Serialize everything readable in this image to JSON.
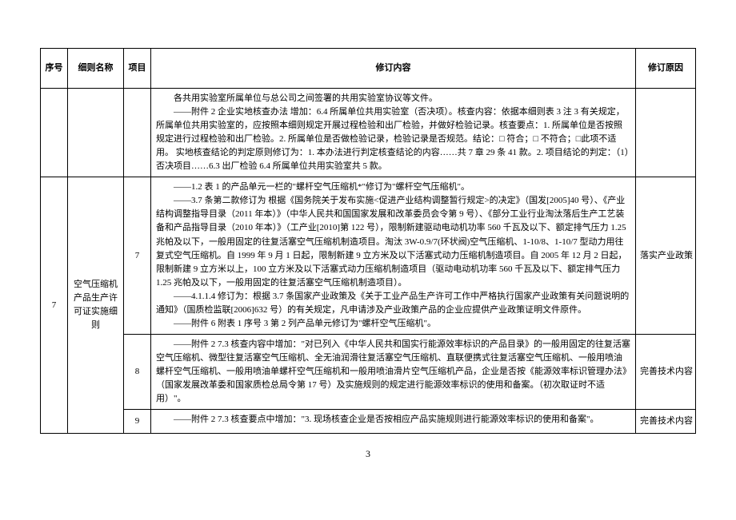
{
  "header": {
    "seq": "序号",
    "name": "细则名称",
    "item": "项目",
    "content": "修订内容",
    "reason": "修订原因"
  },
  "rows": [
    {
      "seq": "",
      "name": "",
      "item": "",
      "content": [
        "各共用实验室所属单位与总公司之间签署的共用实验室协议等文件。",
        "——附件 2 企业实地核查办法  增加：6.4 所属单位共用实验室（否决项）。核查内容：依据本细则表 3 注 3 有关规定，所属单位共用实验室的，应按照本细则规定开展过程检验和出厂检验，并做好检验记录。核查要点：1. 所属单位是否按照规定进行过程检验和出厂检验。2. 所属单位是否做检验记录，检验记录是否规范。结论：□ 符合；□ 不符合；□此项不适用。 实地核查结论的判定原则修订为：1. 本办法进行判定核查结论的内容……共 7 章 29 条 41 款。2. 项目结论的判定：（1）否决项目……6.3 出厂检验 6.4 所属单位共用实验室共 5 款。"
      ],
      "reason": ""
    },
    {
      "seq": "7",
      "name": "空气压缩机产品生产许可证实施细则",
      "item": "7",
      "content": [
        "——1.2 表 1 的产品单元一栏的\"螺杆空气压缩机*\"修订为\"螺杆空气压缩机\"。",
        "——3.7 条第二款修订为 根据《国务院关于发布实施<促进产业结构调整暂行规定>的决定》（国发[2005]40 号）、《产业结构调整指导目录（2011 年本）》（中华人民共和国国家发展和改革委员会令第 9 号）、《部分工业行业淘汰落后生产工艺装备和产品指导目录（2010 年本）》（工产业[2010]第 122 号），限制新建驱动电动机功率 560 千瓦及以下、额定排气压力 1.25 兆帕及以下，一般用固定的往复活塞空气压缩机制造项目。淘汰 3W-0.9/7(环状阀)空气压缩机、1-10/8、1-10/7 型动力用往复式空气压缩机。自 1999 年 9 月 1 日起，限制新建 9 立方米及以下活塞式动力压缩机制造项目。自 2005 年 12 月 2 日起，限制新建 9 立方米以上，100 立方米及以下活塞式动力压缩机制造项目（驱动电动机功率 560 千瓦及以下、额定排气压力 1.25 兆帕及以下，一般用固定的往复活塞空气压缩机制造项目）。",
        "——4.1.1.4 修订为：根据 3.7 条国家产业政策及《关于工业产品生产许可工作中严格执行国家产业政策有关问题说明的通知》（国质检监联[2006]632 号）的有关规定，凡申请涉及产业政策产品的企业应提供产业政策证明文件原件。",
        "——附件 6 附表 1 序号 3 第 2 列产品单元修订为\"螺杆空气压缩机\"。"
      ],
      "reason": "落实产业政策",
      "rowspan_seq": 3,
      "rowspan_name": 3
    },
    {
      "item": "8",
      "content": [
        "——附件 2  7.3 核查内容中增加：\"对已列入《中华人民共和国实行能源效率标识的产品目录》的一般用固定的往复活塞空气压缩机、微型往复活塞空气压缩机、全无油润滑往复活塞空气压缩机、直联便携式往复活塞空气压缩机、一般用喷油螺杆空气压缩机、一般用喷油单螺杆空气压缩机和一般用喷油滑片空气压缩机产品，企业是否按《能源效率标识管理办法》（国家发展改革委和国家质检总局令第 17 号）及实施规则的规定进行能源效率标识的使用和备案。（初次取证时不适用）\"。"
      ],
      "reason": "完善技术内容"
    },
    {
      "item": "9",
      "content": [
        "——附件 2  7.3 核查要点中增加：\"3. 现场核查企业是否按相应产品实施规则进行能源效率标识的使用和备案\"。"
      ],
      "reason": "完善技术内容"
    }
  ],
  "page_number": "3"
}
